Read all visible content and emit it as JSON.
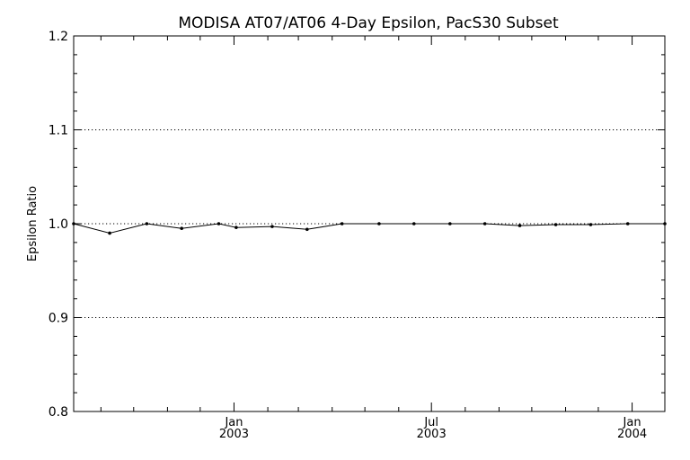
{
  "chart_data": {
    "type": "line",
    "title": "MODISA AT07/AT06 4-Day Epsilon, PacS30 Subset",
    "xlabel": "",
    "ylabel": "Epsilon Ratio",
    "ylim": [
      0.8,
      1.2
    ],
    "xlim": [
      "2002-08-07",
      "2004-01-31"
    ],
    "yticks": [
      0.8,
      0.9,
      1.0,
      1.1,
      1.2
    ],
    "ytick_labels": [
      "0.8",
      "0.9",
      "1.0",
      "1.1",
      "1.2"
    ],
    "xtick_labels": [
      {
        "date": "2003-01-01",
        "month": "Jan",
        "year": "2003"
      },
      {
        "date": "2003-07-01",
        "month": "Jul",
        "year": "2003"
      },
      {
        "date": "2004-01-01",
        "month": "Jan",
        "year": "2004"
      }
    ],
    "minor_tick_dates": [
      "2002-09-01",
      "2002-10-01",
      "2002-11-01",
      "2002-12-01",
      "2003-02-01",
      "2003-03-01",
      "2003-04-01",
      "2003-05-01",
      "2003-06-01",
      "2003-08-01",
      "2003-09-01",
      "2003-10-01",
      "2003-11-01",
      "2003-12-01"
    ],
    "grid_y": [
      0.9,
      1.0,
      1.1
    ],
    "series": [
      {
        "x": [
          "2002-08-07",
          "2002-09-09",
          "2002-10-13",
          "2002-11-14",
          "2002-12-18",
          "2003-01-03",
          "2003-02-05",
          "2003-03-09",
          "2003-04-10",
          "2003-05-14",
          "2003-06-15",
          "2003-07-18",
          "2003-08-19",
          "2003-09-20",
          "2003-10-23",
          "2003-11-24",
          "2003-12-28",
          "2004-01-31"
        ],
        "values": [
          1.0,
          0.99,
          1.0,
          0.995,
          1.0,
          0.996,
          0.997,
          0.994,
          1.0,
          1.0,
          1.0,
          1.0,
          1.0,
          0.998,
          0.999,
          0.999,
          1.0,
          1.0
        ]
      }
    ]
  }
}
